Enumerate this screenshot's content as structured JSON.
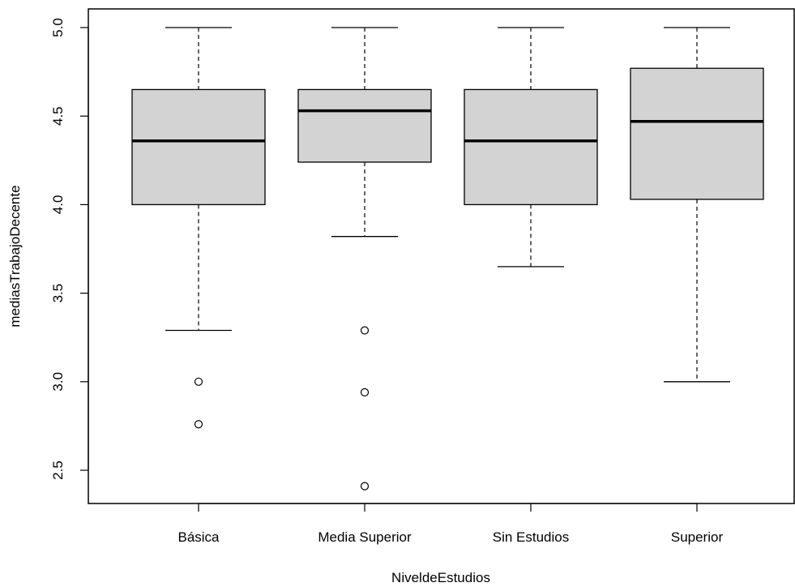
{
  "chart_data": {
    "type": "box",
    "title": "",
    "xlabel": "NiveldeEstudios",
    "ylabel": "mediasTrabajoDecente",
    "ylim": [
      2.3,
      5.1
    ],
    "yticks": [
      "2.5",
      "3.0",
      "3.5",
      "4.0",
      "4.5",
      "5.0"
    ],
    "categories": [
      "Básica",
      "Media Superior",
      "Sin Estudios",
      "Superior"
    ],
    "boxes": [
      {
        "category": "Básica",
        "whisker_low": 3.29,
        "q1": 4.0,
        "median": 4.36,
        "q3": 4.65,
        "whisker_high": 5.0,
        "outliers": [
          3.0,
          2.76
        ]
      },
      {
        "category": "Media Superior",
        "whisker_low": 3.82,
        "q1": 4.24,
        "median": 4.53,
        "q3": 4.65,
        "whisker_high": 5.0,
        "outliers": [
          3.29,
          2.94,
          2.41
        ]
      },
      {
        "category": "Sin Estudios",
        "whisker_low": 3.65,
        "q1": 4.0,
        "median": 4.36,
        "q3": 4.65,
        "whisker_high": 5.0,
        "outliers": []
      },
      {
        "category": "Superior",
        "whisker_low": 3.0,
        "q1": 4.03,
        "median": 4.47,
        "q3": 4.77,
        "whisker_high": 5.0,
        "outliers": []
      }
    ],
    "box_fill": "#d3d3d3",
    "line_color": "#000000",
    "grid": false
  }
}
